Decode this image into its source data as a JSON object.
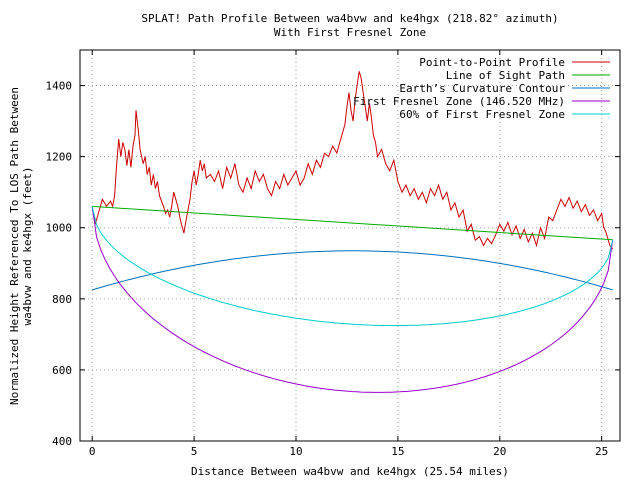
{
  "chart_data": {
    "type": "line",
    "title": "SPLAT! Path Profile Between wa4bvw and ke4hgx (218.82° azimuth)",
    "subtitle": "With First Fresnel Zone",
    "xlabel": "Distance Between wa4bvw and ke4hgx (25.54 miles)",
    "ylabel_line1": "Normalized Height Referenced To LOS Path Between",
    "ylabel_line2": "wa4bvw and ke4hgx (feet)",
    "xlim": [
      -0.6,
      25.9
    ],
    "ylim": [
      400,
      1500
    ],
    "x_ticks": [
      0,
      5,
      10,
      15,
      20,
      25
    ],
    "y_ticks": [
      400,
      600,
      800,
      1000,
      1200,
      1400
    ],
    "grid": true,
    "legend_position": "top-right",
    "series": [
      {
        "name": "Point-to-Point Profile",
        "color": "#cc0000",
        "points": [
          [
            0,
            1060
          ],
          [
            0.15,
            1010
          ],
          [
            0.3,
            1040
          ],
          [
            0.5,
            1080
          ],
          [
            0.7,
            1060
          ],
          [
            0.9,
            1075
          ],
          [
            1.0,
            1060
          ],
          [
            1.1,
            1090
          ],
          [
            1.2,
            1180
          ],
          [
            1.3,
            1250
          ],
          [
            1.4,
            1200
          ],
          [
            1.5,
            1240
          ],
          [
            1.6,
            1220
          ],
          [
            1.7,
            1175
          ],
          [
            1.8,
            1220
          ],
          [
            1.9,
            1170
          ],
          [
            2.0,
            1230
          ],
          [
            2.1,
            1260
          ],
          [
            2.15,
            1330
          ],
          [
            2.25,
            1280
          ],
          [
            2.35,
            1220
          ],
          [
            2.5,
            1180
          ],
          [
            2.6,
            1200
          ],
          [
            2.7,
            1150
          ],
          [
            2.8,
            1170
          ],
          [
            2.9,
            1120
          ],
          [
            3.0,
            1150
          ],
          [
            3.1,
            1110
          ],
          [
            3.2,
            1130
          ],
          [
            3.3,
            1090
          ],
          [
            3.4,
            1075
          ],
          [
            3.5,
            1060
          ],
          [
            3.6,
            1040
          ],
          [
            3.7,
            1050
          ],
          [
            3.8,
            1030
          ],
          [
            3.9,
            1060
          ],
          [
            4.0,
            1100
          ],
          [
            4.1,
            1080
          ],
          [
            4.2,
            1060
          ],
          [
            4.3,
            1030
          ],
          [
            4.4,
            1005
          ],
          [
            4.5,
            985
          ],
          [
            4.6,
            1020
          ],
          [
            4.7,
            1050
          ],
          [
            4.8,
            1080
          ],
          [
            4.9,
            1130
          ],
          [
            5.0,
            1160
          ],
          [
            5.1,
            1120
          ],
          [
            5.2,
            1150
          ],
          [
            5.3,
            1190
          ],
          [
            5.4,
            1160
          ],
          [
            5.5,
            1180
          ],
          [
            5.6,
            1140
          ],
          [
            5.8,
            1150
          ],
          [
            6.0,
            1130
          ],
          [
            6.2,
            1160
          ],
          [
            6.4,
            1110
          ],
          [
            6.6,
            1170
          ],
          [
            6.8,
            1140
          ],
          [
            7.0,
            1180
          ],
          [
            7.2,
            1120
          ],
          [
            7.4,
            1100
          ],
          [
            7.6,
            1140
          ],
          [
            7.8,
            1110
          ],
          [
            8.0,
            1160
          ],
          [
            8.2,
            1130
          ],
          [
            8.4,
            1150
          ],
          [
            8.6,
            1110
          ],
          [
            8.8,
            1090
          ],
          [
            9.0,
            1130
          ],
          [
            9.2,
            1110
          ],
          [
            9.4,
            1150
          ],
          [
            9.6,
            1120
          ],
          [
            9.8,
            1140
          ],
          [
            10.0,
            1160
          ],
          [
            10.2,
            1120
          ],
          [
            10.4,
            1140
          ],
          [
            10.6,
            1180
          ],
          [
            10.8,
            1150
          ],
          [
            11.0,
            1190
          ],
          [
            11.2,
            1170
          ],
          [
            11.4,
            1210
          ],
          [
            11.6,
            1200
          ],
          [
            11.8,
            1230
          ],
          [
            12.0,
            1210
          ],
          [
            12.2,
            1250
          ],
          [
            12.4,
            1290
          ],
          [
            12.5,
            1340
          ],
          [
            12.6,
            1380
          ],
          [
            12.7,
            1330
          ],
          [
            12.8,
            1300
          ],
          [
            12.9,
            1360
          ],
          [
            13.0,
            1400
          ],
          [
            13.1,
            1440
          ],
          [
            13.2,
            1420
          ],
          [
            13.3,
            1380
          ],
          [
            13.4,
            1340
          ],
          [
            13.5,
            1300
          ],
          [
            13.6,
            1350
          ],
          [
            13.7,
            1310
          ],
          [
            13.8,
            1260
          ],
          [
            13.9,
            1240
          ],
          [
            14.0,
            1200
          ],
          [
            14.2,
            1220
          ],
          [
            14.4,
            1180
          ],
          [
            14.6,
            1160
          ],
          [
            14.8,
            1190
          ],
          [
            15.0,
            1130
          ],
          [
            15.2,
            1100
          ],
          [
            15.4,
            1120
          ],
          [
            15.6,
            1090
          ],
          [
            15.8,
            1110
          ],
          [
            16.0,
            1080
          ],
          [
            16.2,
            1100
          ],
          [
            16.4,
            1070
          ],
          [
            16.6,
            1110
          ],
          [
            16.8,
            1090
          ],
          [
            17.0,
            1120
          ],
          [
            17.2,
            1080
          ],
          [
            17.4,
            1100
          ],
          [
            17.6,
            1050
          ],
          [
            17.8,
            1070
          ],
          [
            18.0,
            1030
          ],
          [
            18.2,
            1050
          ],
          [
            18.4,
            990
          ],
          [
            18.6,
            1010
          ],
          [
            18.8,
            965
          ],
          [
            19.0,
            975
          ],
          [
            19.2,
            950
          ],
          [
            19.4,
            970
          ],
          [
            19.6,
            955
          ],
          [
            19.8,
            980
          ],
          [
            20.0,
            1010
          ],
          [
            20.2,
            990
          ],
          [
            20.4,
            1015
          ],
          [
            20.6,
            980
          ],
          [
            20.8,
            1005
          ],
          [
            21.0,
            970
          ],
          [
            21.2,
            995
          ],
          [
            21.4,
            960
          ],
          [
            21.6,
            985
          ],
          [
            21.8,
            950
          ],
          [
            22.0,
            1000
          ],
          [
            22.2,
            970
          ],
          [
            22.4,
            1030
          ],
          [
            22.6,
            1020
          ],
          [
            22.8,
            1050
          ],
          [
            23.0,
            1080
          ],
          [
            23.2,
            1060
          ],
          [
            23.4,
            1085
          ],
          [
            23.6,
            1055
          ],
          [
            23.8,
            1075
          ],
          [
            24.0,
            1045
          ],
          [
            24.2,
            1065
          ],
          [
            24.4,
            1035
          ],
          [
            24.6,
            1050
          ],
          [
            24.8,
            1020
          ],
          [
            25.0,
            1040
          ],
          [
            25.1,
            1000
          ],
          [
            25.2,
            990
          ],
          [
            25.3,
            970
          ],
          [
            25.4,
            950
          ],
          [
            25.54,
            940
          ]
        ]
      },
      {
        "name": "Line of Sight Path",
        "color": "#00aa00",
        "points": [
          [
            0,
            1060
          ],
          [
            25.54,
            966
          ]
        ]
      },
      {
        "name": "Earth’s Curvature Contour",
        "color": "#0070c0",
        "function": {
          "kind": "parabola",
          "x0": 0,
          "y0": 825,
          "x1": 25.54,
          "y1": 825,
          "ymid": 935
        }
      },
      {
        "name": "First Fresnel Zone (146.520 MHz)",
        "color": "#9900cc",
        "function": {
          "kind": "fresnel",
          "scale": 1.0
        }
      },
      {
        "name": "60% of First Fresnel Zone",
        "color": "#00cccc",
        "function": {
          "kind": "fresnel",
          "scale": 0.6
        }
      }
    ]
  }
}
